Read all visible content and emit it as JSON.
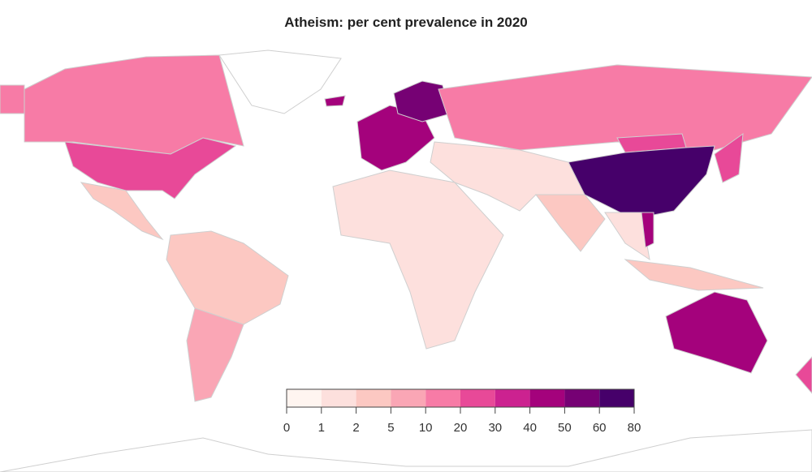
{
  "title": "Atheism: per cent prevalence in 2020",
  "legend": {
    "breaks": [
      "0",
      "1",
      "2",
      "5",
      "10",
      "20",
      "30",
      "40",
      "50",
      "60",
      "80"
    ],
    "colors": [
      "#fff5f0",
      "#fde0dd",
      "#fcc8c2",
      "#faa6b5",
      "#f77ba6",
      "#e84998",
      "#cc2290",
      "#a4027c",
      "#760174",
      "#46006a"
    ]
  },
  "regions": [
    {
      "name": "Canada",
      "bin": 4
    },
    {
      "name": "Alaska",
      "bin": 4
    },
    {
      "name": "United States",
      "bin": 5
    },
    {
      "name": "Greenland",
      "bin": null
    },
    {
      "name": "Mexico and Central America",
      "bin": 2
    },
    {
      "name": "South America",
      "bin": 2
    },
    {
      "name": "Argentina",
      "bin": 3
    },
    {
      "name": "Western Europe",
      "bin": 7
    },
    {
      "name": "Scandinavia",
      "bin": 8
    },
    {
      "name": "Iceland",
      "bin": 7
    },
    {
      "name": "Russia",
      "bin": 4
    },
    {
      "name": "Middle East and Central Asia",
      "bin": 1
    },
    {
      "name": "Mongolia",
      "bin": 5
    },
    {
      "name": "China",
      "bin": 9
    },
    {
      "name": "India",
      "bin": 2
    },
    {
      "name": "Southeast Asia",
      "bin": 1
    },
    {
      "name": "Vietnam",
      "bin": 7
    },
    {
      "name": "Japan",
      "bin": 5
    },
    {
      "name": "Africa",
      "bin": 1
    },
    {
      "name": "Indonesia",
      "bin": 2
    },
    {
      "name": "Australia",
      "bin": 7
    },
    {
      "name": "New Zealand",
      "bin": 5
    },
    {
      "name": "Antarctica",
      "bin": null
    }
  ]
}
